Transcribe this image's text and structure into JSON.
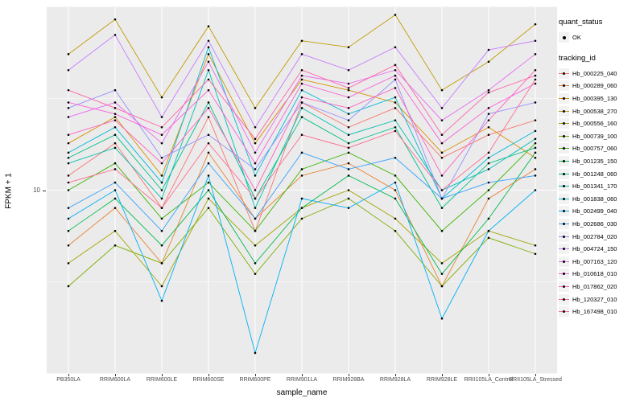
{
  "chart_data": {
    "type": "line",
    "title": "",
    "xlabel": "sample_name",
    "ylabel": "FPKM + 1",
    "yscale": "log10",
    "ylim": [
      1,
      100
    ],
    "yticks": [
      {
        "label": "10",
        "value": 10
      }
    ],
    "grid": "on",
    "legend_position": "right",
    "categories": [
      "PB350LA",
      "RRIM600LA",
      "RRIM600LE",
      "RRIM600SE",
      "RRIM600PE",
      "RRIM901LA",
      "RRIM928BA",
      "RRIM928LA",
      "RRIM928LE",
      "RRII105LA_Control",
      "RRII105LA_Stressed"
    ],
    "series": [
      {
        "name": "Hb_000225_040",
        "color": "#F8766D",
        "values": [
          12,
          18,
          8,
          25,
          6,
          30,
          22,
          28,
          15,
          20,
          24
        ]
      },
      {
        "name": "Hb_000289_060",
        "color": "#EA8331",
        "values": [
          5,
          8,
          4,
          16,
          7,
          12,
          14,
          10,
          3,
          9,
          13
        ]
      },
      {
        "name": "Hb_000395_130",
        "color": "#D89000",
        "values": [
          18,
          25,
          12,
          55,
          18,
          40,
          35,
          30,
          16,
          22,
          15
        ]
      },
      {
        "name": "Hb_000538_270",
        "color": "#C09B00",
        "values": [
          55,
          85,
          32,
          78,
          28,
          65,
          60,
          90,
          35,
          50,
          80
        ]
      },
      {
        "name": "Hb_000556_160",
        "color": "#A3A500",
        "values": [
          4,
          6,
          3,
          9,
          5,
          8,
          10,
          7,
          4,
          6,
          5
        ]
      },
      {
        "name": "Hb_000739_100",
        "color": "#7CAE00",
        "values": [
          3,
          5,
          4,
          8,
          3.5,
          7,
          9,
          6,
          3,
          5.5,
          4.5
        ]
      },
      {
        "name": "Hb_000757_060",
        "color": "#39B600",
        "values": [
          10,
          14,
          7,
          11,
          6,
          13,
          16,
          12,
          6,
          10,
          18
        ]
      },
      {
        "name": "Hb_001235_150",
        "color": "#00BB4E",
        "values": [
          6,
          9,
          5,
          10,
          4,
          8,
          12,
          9,
          3.5,
          7,
          16
        ]
      },
      {
        "name": "Hb_001248_060",
        "color": "#00C087",
        "values": [
          15,
          20,
          10,
          30,
          9,
          25,
          18,
          22,
          8,
          14,
          17
        ]
      },
      {
        "name": "Hb_001341_170",
        "color": "#00C0B2",
        "values": [
          14,
          17,
          9,
          45,
          8,
          28,
          20,
          24,
          10,
          13,
          19
        ]
      },
      {
        "name": "Hb_001838_060",
        "color": "#00BCD8",
        "values": [
          16,
          22,
          11,
          60,
          12,
          35,
          26,
          32,
          9,
          15,
          21
        ]
      },
      {
        "name": "Hb_002499_040",
        "color": "#00B0F6",
        "values": [
          7,
          10,
          2.5,
          12,
          1.3,
          9,
          8,
          11,
          2,
          6,
          10
        ]
      },
      {
        "name": "Hb_002686_030",
        "color": "#35A2FF",
        "values": [
          8,
          11,
          6,
          14,
          7,
          16,
          13,
          15,
          9,
          11,
          12
        ]
      },
      {
        "name": "Hb_002784_020",
        "color": "#9590FF",
        "values": [
          28,
          35,
          15,
          20,
          13,
          30,
          24,
          40,
          9,
          26,
          30
        ]
      },
      {
        "name": "Hb_004724_150",
        "color": "#C77CFF",
        "values": [
          45,
          70,
          25,
          65,
          22,
          55,
          45,
          60,
          28,
          58,
          65
        ]
      },
      {
        "name": "Hb_007163_120",
        "color": "#E76BF3",
        "values": [
          25,
          30,
          18,
          50,
          16,
          42,
          38,
          45,
          24,
          35,
          55
        ]
      },
      {
        "name": "Hb_010618_010",
        "color": "#FA62DB",
        "values": [
          30,
          26,
          20,
          35,
          14,
          38,
          32,
          42,
          18,
          28,
          38
        ]
      },
      {
        "name": "Hb_017862_020",
        "color": "#FF61C2",
        "values": [
          20,
          24,
          14,
          28,
          10,
          32,
          28,
          36,
          12,
          24,
          45
        ]
      },
      {
        "name": "Hb_120327_010",
        "color": "#FF62A8",
        "values": [
          35,
          28,
          22,
          40,
          19,
          45,
          36,
          48,
          20,
          34,
          42
        ]
      },
      {
        "name": "Hb_167498_010",
        "color": "#FF6C91",
        "values": [
          11,
          13,
          8,
          18,
          9,
          20,
          17,
          21,
          10,
          16,
          40
        ]
      }
    ]
  },
  "legend": {
    "quant_status": {
      "title": "quant_status",
      "items": [
        "OK"
      ]
    },
    "tracking_id": {
      "title": "tracking_id"
    }
  },
  "style": {
    "panel_bg": "#EBEBEB",
    "grid_color": "#FFFFFF",
    "point_color": "#000000",
    "tick_text_color": "#4D4D4D"
  }
}
